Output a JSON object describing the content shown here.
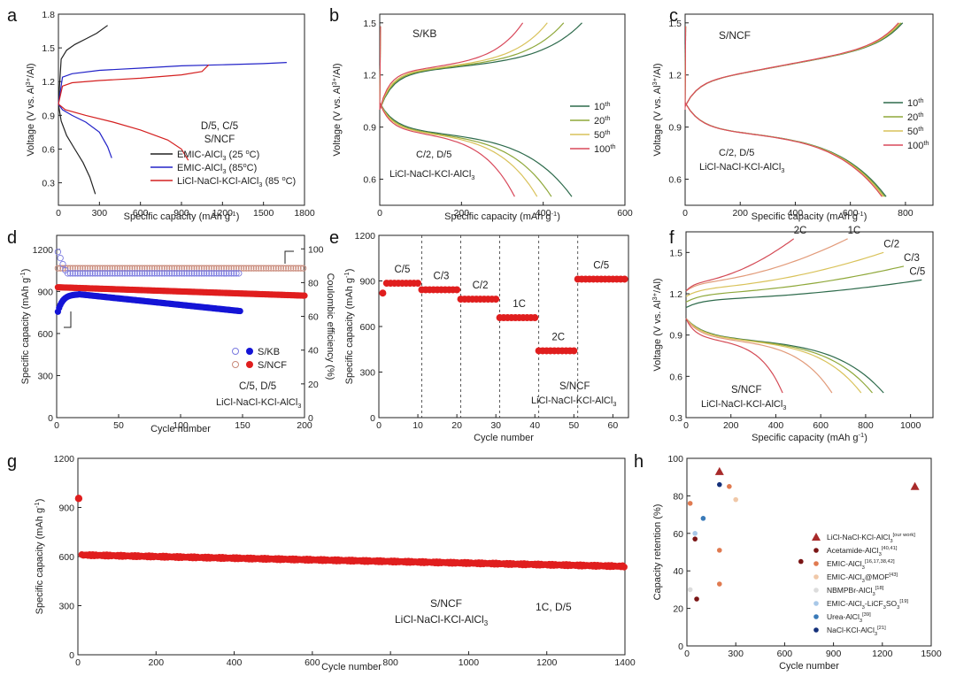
{
  "figure": "battery-performance-panels",
  "chart_data": [
    {
      "panel": "a",
      "type": "line",
      "xlabel": "Specific capacity (mAh g-1)",
      "ylabel": "Voltage (V vs. Al3+/Al)",
      "xlim": [
        0,
        1800
      ],
      "ylim": [
        0.1,
        1.8
      ],
      "xticks": [
        0,
        300,
        600,
        900,
        1200,
        1500,
        1800
      ],
      "yticks": [
        0.3,
        0.6,
        0.9,
        1.2,
        1.5,
        1.8
      ],
      "annotations": [
        "D/5, C/5",
        "S/NCF"
      ],
      "series": [
        {
          "name": "EMIC-AlCl3 (25 °C)",
          "color": "#222222",
          "charge": {
            "x": [
              0,
              20,
              60,
              120,
              200,
              280,
              360
            ],
            "y": [
              1.0,
              1.4,
              1.48,
              1.53,
              1.58,
              1.63,
              1.7
            ]
          },
          "discharge": {
            "x": [
              0,
              20,
              60,
              120,
              180,
              230,
              270
            ],
            "y": [
              1.0,
              0.85,
              0.72,
              0.6,
              0.48,
              0.35,
              0.2
            ]
          }
        },
        {
          "name": "EMIC-AlCl3 (85 °C)",
          "color": "#2323c8",
          "charge": {
            "x": [
              0,
              30,
              100,
              300,
              600,
              900,
              1200,
              1500,
              1670
            ],
            "y": [
              1.0,
              1.24,
              1.27,
              1.3,
              1.32,
              1.34,
              1.35,
              1.36,
              1.37
            ]
          },
          "discharge": {
            "x": [
              0,
              30,
              100,
              200,
              300,
              360,
              390
            ],
            "y": [
              1.0,
              0.95,
              0.9,
              0.84,
              0.75,
              0.62,
              0.52
            ]
          }
        },
        {
          "name": "LiCl-NaCl-KCl-AlCl3 (85 °C)",
          "color": "#d42020",
          "charge": {
            "x": [
              0,
              30,
              100,
              300,
              600,
              900,
              1050,
              1100
            ],
            "y": [
              1.0,
              1.16,
              1.19,
              1.21,
              1.23,
              1.26,
              1.29,
              1.35
            ]
          },
          "discharge": {
            "x": [
              0,
              50,
              200,
              400,
              600,
              800,
              900,
              950
            ],
            "y": [
              1.0,
              0.95,
              0.9,
              0.84,
              0.77,
              0.68,
              0.6,
              0.5
            ]
          }
        }
      ]
    },
    {
      "panel": "b",
      "type": "line",
      "xlabel": "Specific capacity (mAh g-1)",
      "ylabel": "Voltage (V vs. Al3+/Al)",
      "xlim": [
        0,
        600
      ],
      "ylim": [
        0.45,
        1.55
      ],
      "xticks": [
        0,
        200,
        400,
        600
      ],
      "yticks": [
        0.6,
        0.9,
        1.2,
        1.5
      ],
      "annotations": [
        "S/KB",
        "C/2, D/5",
        "LiCl-NaCl-KCl-AlCl3"
      ],
      "series": [
        {
          "name": "10th",
          "color": "#2e6b4c",
          "charge_end": 495,
          "discharge_end": 470
        },
        {
          "name": "20th",
          "color": "#8fa83a",
          "charge_end": 450,
          "discharge_end": 420
        },
        {
          "name": "50th",
          "color": "#d9c25a",
          "charge_end": 410,
          "discharge_end": 385
        },
        {
          "name": "100th",
          "color": "#d8485a",
          "charge_end": 350,
          "discharge_end": 330
        }
      ]
    },
    {
      "panel": "c",
      "type": "line",
      "xlabel": "Specific capacity (mAh g-1)",
      "ylabel": "Voltage (V vs. Al3+/Al)",
      "xlim": [
        0,
        900
      ],
      "ylim": [
        0.45,
        1.55
      ],
      "xticks": [
        0,
        200,
        400,
        600,
        800
      ],
      "yticks": [
        0.6,
        0.9,
        1.2,
        1.5
      ],
      "annotations": [
        "S/NCF",
        "C/2, D/5",
        "LiCl-NaCl-KCl-AlCl3"
      ],
      "series": [
        {
          "name": "10th",
          "color": "#2e6b4c",
          "charge_end": 790,
          "discharge_end": 730
        },
        {
          "name": "20th",
          "color": "#8fa83a",
          "charge_end": 785,
          "discharge_end": 725
        },
        {
          "name": "50th",
          "color": "#d9c25a",
          "charge_end": 780,
          "discharge_end": 720
        },
        {
          "name": "100th",
          "color": "#d8485a",
          "charge_end": 775,
          "discharge_end": 715
        }
      ]
    },
    {
      "panel": "d",
      "type": "scatter",
      "xlabel": "Cycle number",
      "ylabel": "Specific capacity (mAh g-1)",
      "y2label": "Coulombic efficiency (%)",
      "xlim": [
        0,
        200
      ],
      "ylim": [
        0,
        1300
      ],
      "y2lim": [
        0,
        108
      ],
      "xticks": [
        0,
        50,
        100,
        150,
        200
      ],
      "yticks": [
        0,
        300,
        600,
        900,
        1200
      ],
      "y2ticks": [
        0,
        20,
        40,
        60,
        80,
        100
      ],
      "annotations": [
        "C/5, D/5",
        "LiCl-NaCl-KCl-AlCl3"
      ],
      "legend": [
        "S/KB",
        "S/NCF"
      ],
      "series": [
        {
          "name": "S/KB capacity",
          "color": "#1414d6",
          "cycles": 148,
          "start": 720,
          "peak": 880,
          "end": 760
        },
        {
          "name": "S/KB CE",
          "color": "#7a7ae0",
          "cycles": 148,
          "start": 100,
          "level": 85.5
        },
        {
          "name": "S/NCF capacity",
          "color": "#e01e1e",
          "cycles": 200,
          "start": 930,
          "end": 870
        },
        {
          "name": "S/NCF CE",
          "color": "#c98a7a",
          "cycles": 200,
          "level": 88.5
        }
      ]
    },
    {
      "panel": "e",
      "type": "scatter",
      "xlabel": "Cycle number",
      "ylabel": "Specific capacity (mAh g-1)",
      "xlim": [
        0,
        64
      ],
      "ylim": [
        0,
        1200
      ],
      "xticks": [
        0,
        10,
        20,
        30,
        40,
        50,
        60
      ],
      "yticks": [
        0,
        300,
        600,
        900,
        1200
      ],
      "dividers": [
        11,
        21,
        31,
        41,
        51
      ],
      "annotations": [
        "S/NCF",
        "LiCl-NaCl-KCl-AlCl3"
      ],
      "segments": [
        {
          "rate": "C/5",
          "from": 1,
          "to": 11,
          "capacity": 885
        },
        {
          "rate": "C/3",
          "from": 11,
          "to": 21,
          "capacity": 842
        },
        {
          "rate": "C/2",
          "from": 21,
          "to": 31,
          "capacity": 780
        },
        {
          "rate": "1C",
          "from": 31,
          "to": 41,
          "capacity": 658
        },
        {
          "rate": "2C",
          "from": 41,
          "to": 51,
          "capacity": 440
        },
        {
          "rate": "C/5",
          "from": 51,
          "to": 63,
          "capacity": 912
        }
      ]
    },
    {
      "panel": "f",
      "type": "line",
      "xlabel": "Specific capacity (mAh g-1)",
      "ylabel": "Voltage (V vs. Al3+/Al)",
      "xlim": [
        0,
        1100
      ],
      "ylim": [
        0.3,
        1.65
      ],
      "xticks": [
        0,
        200,
        400,
        600,
        800,
        1000
      ],
      "yticks": [
        0.3,
        0.6,
        0.9,
        1.2,
        1.5
      ],
      "annotations": [
        "S/NCF",
        "LiCl-NaCl-KCl-AlCl3"
      ],
      "series": [
        {
          "name": "C/5",
          "color": "#2e6b4c",
          "charge_end": 1050,
          "charge_v": 1.3,
          "discharge_end": 880
        },
        {
          "name": "C/3",
          "color": "#8fa83a",
          "charge_end": 970,
          "charge_v": 1.4,
          "discharge_end": 830
        },
        {
          "name": "C/2",
          "color": "#d9c25a",
          "charge_end": 880,
          "charge_v": 1.5,
          "discharge_end": 780
        },
        {
          "name": "1C",
          "color": "#e29b7a",
          "charge_end": 720,
          "charge_v": 1.6,
          "discharge_end": 650
        },
        {
          "name": "2C",
          "color": "#d44a55",
          "charge_end": 480,
          "charge_v": 1.6,
          "discharge_end": 430
        }
      ]
    },
    {
      "panel": "g",
      "type": "scatter",
      "xlabel": "Cycle number",
      "ylabel": "Specific capacity (mAh g-1)",
      "xlim": [
        0,
        1400
      ],
      "ylim": [
        0,
        1200
      ],
      "xticks": [
        0,
        200,
        400,
        600,
        800,
        1000,
        1200,
        1400
      ],
      "yticks": [
        0,
        300,
        600,
        900,
        1200
      ],
      "annotations": [
        "S/NCF",
        "LiCl-NaCl-KCl-AlCl3",
        "1C, D/5"
      ],
      "series": [
        {
          "name": "S/NCF",
          "color": "#e01e1e",
          "first": 955,
          "start": 610,
          "end": 540,
          "cycles": 1400
        }
      ]
    },
    {
      "panel": "h",
      "type": "scatter",
      "xlabel": "Cycle number",
      "ylabel": "Capacity retention (%)",
      "xlim": [
        0,
        1500
      ],
      "ylim": [
        0,
        100
      ],
      "xticks": [
        0,
        300,
        600,
        900,
        1200,
        1500
      ],
      "yticks": [
        0,
        20,
        40,
        60,
        80,
        100
      ],
      "series": [
        {
          "name": "LiCl-NaCl-KCl-AlCl3 [our work]",
          "color": "#a82a2a",
          "marker": "triangle",
          "points": [
            [
              200,
              93
            ],
            [
              1400,
              85
            ]
          ]
        },
        {
          "name": "Acetamide-AlCl3 [40,41]",
          "color": "#7a1515",
          "marker": "circle",
          "points": [
            [
              50,
              57
            ],
            [
              60,
              25
            ],
            [
              700,
              45
            ]
          ]
        },
        {
          "name": "EMIC-AlCl3 [16,17,38,42]",
          "color": "#e07a50",
          "marker": "circle",
          "points": [
            [
              20,
              76
            ],
            [
              200,
              51
            ],
            [
              200,
              33
            ],
            [
              260,
              85
            ]
          ]
        },
        {
          "name": "EMIC-AlCl3@MOF [43]",
          "color": "#f0c8a8",
          "marker": "circle",
          "points": [
            [
              300,
              78
            ]
          ]
        },
        {
          "name": "NBMPBr-AlCl3 [18]",
          "color": "#dcdcdc",
          "marker": "circle",
          "points": [
            [
              20,
              30
            ]
          ]
        },
        {
          "name": "EMIC-AlCl3-LiCF3SO3 [19]",
          "color": "#a8c8e8",
          "marker": "circle",
          "points": [
            [
              50,
              60
            ]
          ]
        },
        {
          "name": "Urea-AlCl3 [39]",
          "color": "#3a7ab8",
          "marker": "circle",
          "points": [
            [
              100,
              68
            ]
          ]
        },
        {
          "name": "NaCl-KCl-AlCl3 [21]",
          "color": "#14307a",
          "marker": "circle",
          "points": [
            [
              200,
              86
            ]
          ]
        }
      ]
    }
  ],
  "text": {
    "a": {
      "label": "a",
      "ytick": [
        "0.3",
        "0.6",
        "0.9",
        "1.2",
        "1.5",
        "1.8"
      ],
      "xtick": [
        "0",
        "300",
        "600",
        "900",
        "1200",
        "1500",
        "1800"
      ],
      "xlabel": "Specific capacity (mAh g",
      "ylabel": "Voltage (V vs. Al",
      "cond": "D/5, C/5",
      "cathode": "S/NCF",
      "leg1": "EMIC-AlCl",
      "leg1b": " (25 ",
      "leg1c": "C)",
      "leg2": "EMIC-AlCl",
      "leg2b": " (85",
      "leg2c": "C)",
      "leg3": "LiCl-NaCl-KCl-AlCl",
      "leg3b": " (85 ",
      "leg3c": "C)"
    },
    "b": {
      "label": "b",
      "cathode": "S/KB",
      "cond": "C/2, D/5",
      "elec": "LiCl-NaCl-KCl-AlCl",
      "ytick": [
        "0.6",
        "0.9",
        "1.2",
        "1.5"
      ],
      "xtick": [
        "0",
        "200",
        "400",
        "600"
      ],
      "xlabel": "Specific capacity (mAh g",
      "ylabel": "Voltage (V vs. Al",
      "l1": "10",
      "l2": "20",
      "l3": "50",
      "l4": "100"
    },
    "c": {
      "label": "c",
      "cathode": "S/NCF",
      "cond": "C/2, D/5",
      "elec": "LiCl-NaCl-KCl-AlCl",
      "ytick": [
        "0.6",
        "0.9",
        "1.2",
        "1.5"
      ],
      "xtick": [
        "0",
        "200",
        "400",
        "600",
        "800"
      ],
      "xlabel": "Specific capacity (mAh g",
      "ylabel": "Voltage (V vs. Al",
      "l1": "10",
      "l2": "20",
      "l3": "50",
      "l4": "100"
    },
    "d": {
      "label": "d",
      "ytick": [
        "0",
        "300",
        "600",
        "900",
        "1200"
      ],
      "y2tick": [
        "0",
        "20",
        "40",
        "60",
        "80",
        "100"
      ],
      "xtick": [
        "0",
        "50",
        "100",
        "150",
        "200"
      ],
      "xlabel": "Cycle number",
      "ylabel": "Specific capacity (mAh g",
      "y2label": "Coulombic efficiency (%)",
      "leg1": "S/KB",
      "leg2": "S/NCF",
      "cond": "C/5, D/5",
      "elec": "LiCl-NaCl-KCl-AlCl"
    },
    "e": {
      "label": "e",
      "ytick": [
        "0",
        "300",
        "600",
        "900",
        "1200"
      ],
      "xtick": [
        "0",
        "10",
        "20",
        "30",
        "40",
        "50",
        "60"
      ],
      "xlabel": "Cycle number",
      "ylabel": "Specific capacity (mAh g",
      "r1": "C/5",
      "r2": "C/3",
      "r3": "C/2",
      "r4": "1C",
      "r5": "2C",
      "r6": "C/5",
      "cathode": "S/NCF",
      "elec": "LiCl-NaCl-KCl-AlCl"
    },
    "f": {
      "label": "f",
      "ytick": [
        "0.3",
        "0.6",
        "0.9",
        "1.2",
        "1.5"
      ],
      "xtick": [
        "0",
        "200",
        "400",
        "600",
        "800",
        "1000"
      ],
      "xlabel": "Specific capacity (mAh g",
      "ylabel": "Voltage (V vs. Al",
      "r1": "2C",
      "r2": "1C",
      "r3": "C/2",
      "r4": "C/3",
      "r5": "C/5",
      "cathode": "S/NCF",
      "elec": "LiCl-NaCl-KCl-AlCl"
    },
    "g": {
      "label": "g",
      "ytick": [
        "0",
        "300",
        "600",
        "900",
        "1200"
      ],
      "xtick": [
        "0",
        "200",
        "400",
        "600",
        "800",
        "1000",
        "1200",
        "1400"
      ],
      "xlabel": "Cycle number",
      "ylabel": "Specific capacity (mAh g",
      "cathode": "S/NCF",
      "elec": "LiCl-NaCl-KCl-AlCl",
      "cond": "1C, D/5"
    },
    "h": {
      "label": "h",
      "ytick": [
        "0",
        "20",
        "40",
        "60",
        "80",
        "100"
      ],
      "xtick": [
        "0",
        "300",
        "600",
        "900",
        "1200",
        "1500"
      ],
      "xlabel": "Cycle number",
      "ylabel": "Capacity retention (%)",
      "leg": [
        {
          "t": "LiCl-NaCl-KCl-AlCl",
          "s": "3",
          "r": "[our work]"
        },
        {
          "t": "Acetamide-AlCl",
          "s": "3",
          "r": "[40,41]"
        },
        {
          "t": "EMIC-AlCl",
          "s": "3",
          "r": "[16,17,38,42]"
        },
        {
          "t": "EMIC-AlCl",
          "s": "3",
          "r": "@MOF[43]"
        },
        {
          "t": "NBMPBr-AlCl",
          "s": "3",
          "r": "[18]"
        },
        {
          "t": "EMIC-AlCl",
          "s": "3",
          "r": "-LiCF"
        },
        {
          "t": "Urea-AlCl",
          "s": "3",
          "r": "[39]"
        },
        {
          "t": "NaCl-KCl-AlCl",
          "s": "3",
          "r": "[21]"
        }
      ]
    },
    "common": {
      "sup_minus1": "-1",
      "sup_3plus": "3+",
      "close_al": "/Al)",
      "close_paren": ")",
      "sub3": "3",
      "th": "th",
      "deg": "o",
      "leg6_tail": "SO",
      "leg6_ref": "[19]"
    }
  }
}
